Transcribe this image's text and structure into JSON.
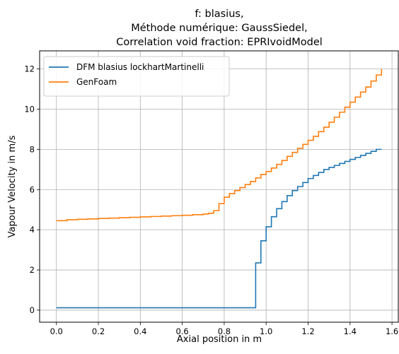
{
  "chart_data": {
    "type": "line",
    "title_lines": [
      "f: blasius,",
      "Méthode numérique: GaussSiedel,",
      "Correlation void fraction: EPRIvoidModel"
    ],
    "xlabel": "Axial position in m",
    "ylabel": "Vapour Velocity in m/s",
    "xlim": [
      -0.08,
      1.63
    ],
    "ylim": [
      -0.6,
      12.9
    ],
    "xticks": [
      0.0,
      0.2,
      0.4,
      0.6,
      0.8,
      1.0,
      1.2,
      1.4,
      1.6
    ],
    "xtick_labels": [
      "0.0",
      "0.2",
      "0.4",
      "0.6",
      "0.8",
      "1.0",
      "1.2",
      "1.4",
      "1.6"
    ],
    "yticks": [
      0,
      2,
      4,
      6,
      8,
      10,
      12
    ],
    "ytick_labels": [
      "0",
      "2",
      "4",
      "6",
      "8",
      "10",
      "12"
    ],
    "grid": true,
    "legend_position": "top-left",
    "series": [
      {
        "name": "DFM blasius lockhartMartinelli",
        "color": "#1f77b4",
        "step": true,
        "x": [
          0.0,
          0.95,
          0.95,
          0.975,
          0.975,
          1.0,
          1.0,
          1.025,
          1.025,
          1.05,
          1.05,
          1.075,
          1.075,
          1.1,
          1.1,
          1.125,
          1.125,
          1.15,
          1.15,
          1.175,
          1.175,
          1.2,
          1.2,
          1.225,
          1.225,
          1.25,
          1.25,
          1.275,
          1.275,
          1.3,
          1.3,
          1.325,
          1.325,
          1.35,
          1.35,
          1.375,
          1.375,
          1.4,
          1.4,
          1.425,
          1.425,
          1.45,
          1.45,
          1.475,
          1.475,
          1.5,
          1.5,
          1.525,
          1.525,
          1.55
        ],
        "y": [
          0.12,
          0.12,
          2.35,
          2.35,
          3.45,
          3.45,
          4.15,
          4.15,
          4.65,
          4.65,
          5.05,
          5.05,
          5.4,
          5.4,
          5.7,
          5.7,
          5.95,
          5.95,
          6.15,
          6.15,
          6.35,
          6.35,
          6.55,
          6.55,
          6.7,
          6.7,
          6.85,
          6.85,
          7.0,
          7.0,
          7.1,
          7.1,
          7.2,
          7.2,
          7.3,
          7.3,
          7.4,
          7.4,
          7.5,
          7.5,
          7.6,
          7.6,
          7.7,
          7.7,
          7.8,
          7.8,
          7.9,
          7.9,
          8.0,
          8.0
        ]
      },
      {
        "name": "GenFoam",
        "color": "#ff7f0e",
        "step": true,
        "x": [
          0.0,
          0.05,
          0.1,
          0.15,
          0.2,
          0.25,
          0.3,
          0.35,
          0.4,
          0.45,
          0.5,
          0.55,
          0.6,
          0.65,
          0.7,
          0.725,
          0.75,
          0.775,
          0.8,
          0.825,
          0.85,
          0.875,
          0.9,
          0.925,
          0.95,
          0.975,
          1.0,
          1.025,
          1.05,
          1.075,
          1.1,
          1.125,
          1.15,
          1.175,
          1.2,
          1.225,
          1.25,
          1.275,
          1.3,
          1.325,
          1.35,
          1.375,
          1.4,
          1.425,
          1.45,
          1.475,
          1.5,
          1.525,
          1.55
        ],
        "y": [
          4.45,
          4.5,
          4.52,
          4.54,
          4.56,
          4.58,
          4.6,
          4.62,
          4.64,
          4.66,
          4.68,
          4.7,
          4.72,
          4.75,
          4.78,
          4.82,
          4.95,
          5.3,
          5.62,
          5.8,
          5.95,
          6.1,
          6.25,
          6.4,
          6.58,
          6.75,
          6.9,
          7.07,
          7.25,
          7.45,
          7.65,
          7.85,
          8.05,
          8.25,
          8.45,
          8.65,
          8.88,
          9.1,
          9.35,
          9.6,
          9.85,
          10.1,
          10.35,
          10.6,
          10.85,
          11.1,
          11.4,
          11.7,
          12.0
        ]
      }
    ]
  }
}
